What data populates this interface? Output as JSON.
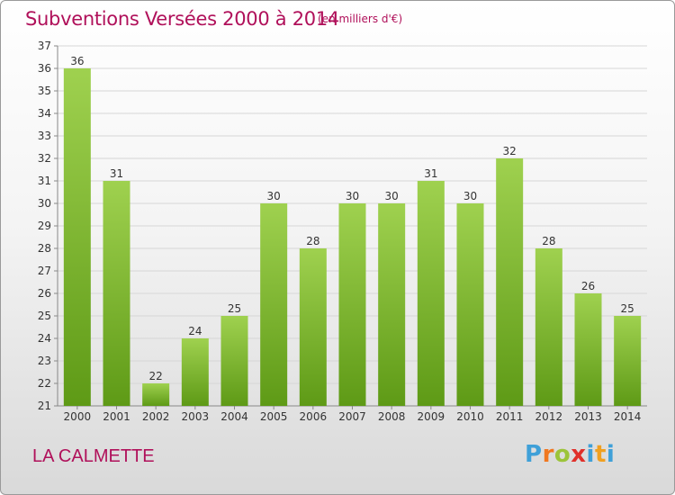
{
  "chart_data": {
    "type": "bar",
    "title": "Subventions Versées 2000 à 2014",
    "subtitle": "(en milliers d'€)",
    "categories": [
      "2000",
      "2001",
      "2002",
      "2003",
      "2004",
      "2005",
      "2006",
      "2007",
      "2008",
      "2009",
      "2010",
      "2011",
      "2012",
      "2013",
      "2014"
    ],
    "values": [
      36,
      31,
      22,
      24,
      25,
      30,
      28,
      30,
      30,
      31,
      30,
      32,
      28,
      26,
      25
    ],
    "ylim": [
      21,
      37
    ],
    "yticks": [
      21,
      22,
      23,
      24,
      25,
      26,
      27,
      28,
      29,
      30,
      31,
      32,
      33,
      34,
      35,
      36,
      37
    ],
    "grid": true,
    "bar_color": "#8cc63f"
  },
  "footer": {
    "commune": "LA CALMETTE",
    "logo": [
      "P",
      "r",
      "o",
      "x",
      "i",
      "t",
      "i"
    ]
  }
}
